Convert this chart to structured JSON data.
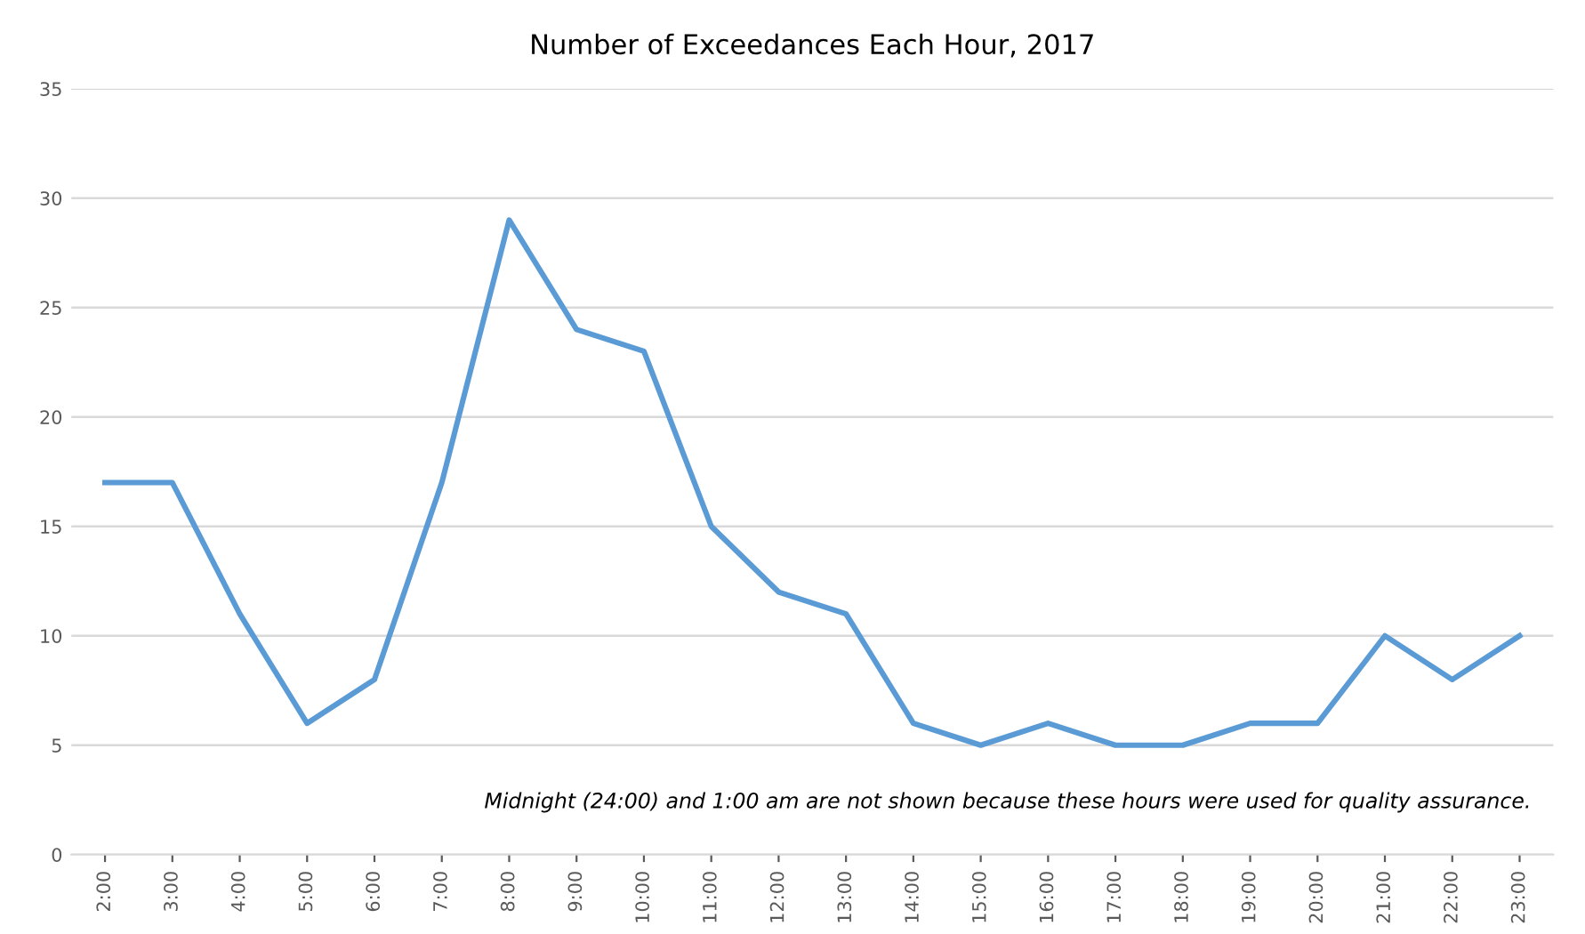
{
  "chart_data": {
    "type": "line",
    "title": "Number of Exceedances Each Hour, 2017",
    "categories": [
      "2:00",
      "3:00",
      "4:00",
      "5:00",
      "6:00",
      "7:00",
      "8:00",
      "9:00",
      "10:00",
      "11:00",
      "12:00",
      "13:00",
      "14:00",
      "15:00",
      "16:00",
      "17:00",
      "18:00",
      "19:00",
      "20:00",
      "21:00",
      "22:00",
      "23:00"
    ],
    "series": [
      {
        "color": "#5b9bd5",
        "values": [
          17,
          17,
          11,
          6,
          8,
          17,
          29,
          24,
          23,
          15,
          12,
          11,
          6,
          5,
          6,
          5,
          5,
          6,
          6,
          10,
          8,
          10
        ]
      }
    ],
    "ylim": [
      0,
      35
    ],
    "yticks": [
      0,
      5,
      10,
      15,
      20,
      25,
      30,
      35
    ],
    "grid": "y",
    "marker": "none",
    "line_style": "solid",
    "annotations": [
      "Midnight (24:00) and 1:00 am are not shown because these hours were used for quality assurance."
    ]
  }
}
